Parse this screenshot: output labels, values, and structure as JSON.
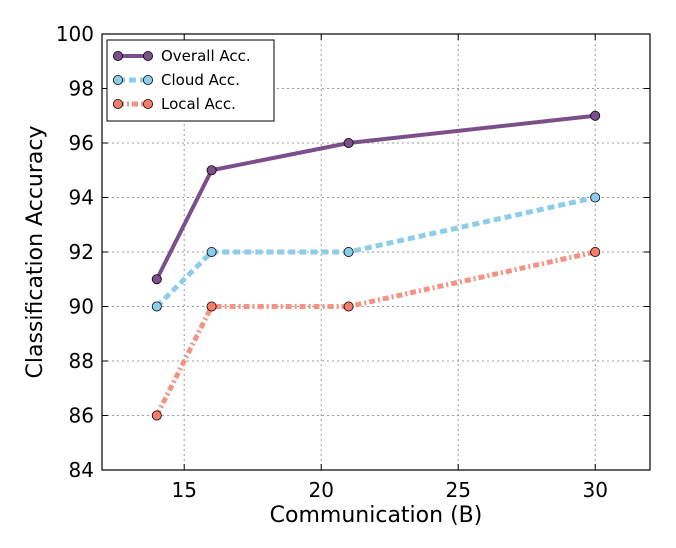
{
  "chart_data": {
    "type": "line",
    "xlabel": "Communication (B)",
    "ylabel": "Classification Accuracy",
    "xlim": [
      12,
      32
    ],
    "ylim": [
      84,
      100
    ],
    "xticks": [
      15,
      20,
      25,
      30
    ],
    "yticks": [
      84,
      86,
      88,
      90,
      92,
      94,
      96,
      98,
      100
    ],
    "grid": true,
    "legend_position": "top-left",
    "series": [
      {
        "name": "Overall Acc.",
        "color": "#7b4f8a",
        "marker_color": "#7b4f8a",
        "style": "solid",
        "x": [
          14,
          16,
          21,
          30
        ],
        "y": [
          91,
          95,
          96,
          97
        ]
      },
      {
        "name": "Cloud Acc.",
        "color": "#8ecdea",
        "marker_color": "#8ecdea",
        "style": "dashed",
        "x": [
          14,
          16,
          21,
          30
        ],
        "y": [
          90,
          92,
          92,
          94
        ]
      },
      {
        "name": "Local Acc.",
        "color": "#f49384",
        "marker_color": "#f47c6a",
        "style": "dashdot",
        "x": [
          14,
          16,
          21,
          30
        ],
        "y": [
          86,
          90,
          90,
          92
        ]
      }
    ]
  }
}
